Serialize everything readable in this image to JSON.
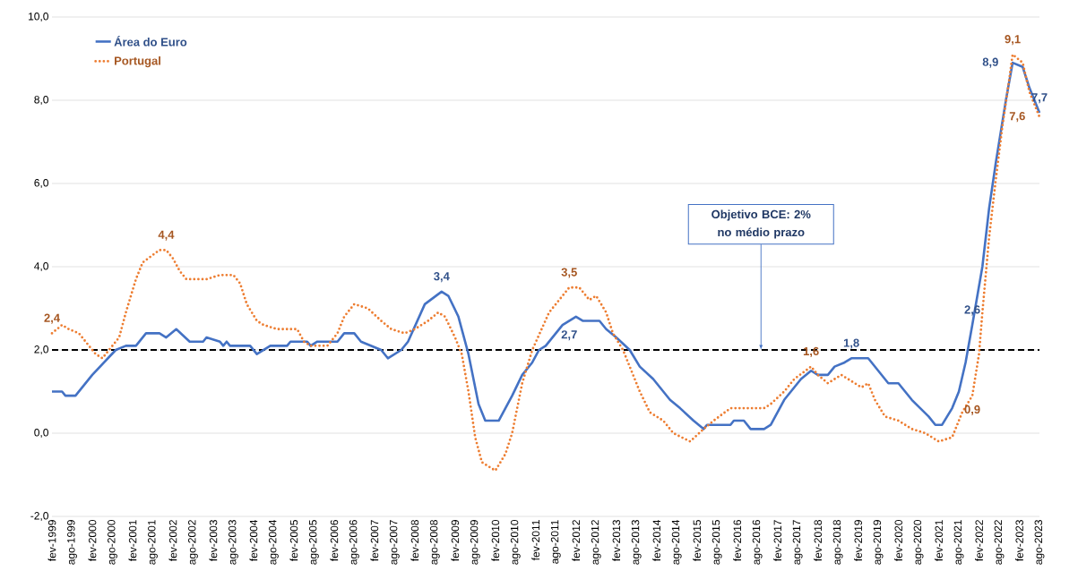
{
  "chart_data": {
    "type": "line",
    "grid": "y",
    "legend": "top left",
    "xlim": [
      "1999-02",
      "2023-08"
    ],
    "ylim": [
      -2,
      10
    ],
    "yticks": [
      {
        "value": -2,
        "label": "-2,0"
      },
      {
        "value": 0,
        "label": "0,0"
      },
      {
        "value": 2,
        "label": "2,0"
      },
      {
        "value": 4,
        "label": "4,0"
      },
      {
        "value": 6,
        "label": "6,0"
      },
      {
        "value": 8,
        "label": "8,0"
      },
      {
        "value": 10,
        "label": "10,0"
      }
    ],
    "xticks": [
      {
        "value": "1999-02",
        "label": "fev-1999"
      },
      {
        "value": "1999-08",
        "label": "ago-1999"
      },
      {
        "value": "2000-02",
        "label": "fev-2000"
      },
      {
        "value": "2000-08",
        "label": "ago-2000"
      },
      {
        "value": "2001-02",
        "label": "fev-2001"
      },
      {
        "value": "2001-08",
        "label": "ago-2001"
      },
      {
        "value": "2002-02",
        "label": "fev-2002"
      },
      {
        "value": "2002-08",
        "label": "ago-2002"
      },
      {
        "value": "2003-02",
        "label": "fev-2003"
      },
      {
        "value": "2003-08",
        "label": "ago-2003"
      },
      {
        "value": "2004-02",
        "label": "fev-2004"
      },
      {
        "value": "2004-08",
        "label": "ago-2004"
      },
      {
        "value": "2005-02",
        "label": "fev-2005"
      },
      {
        "value": "2005-08",
        "label": "ago-2005"
      },
      {
        "value": "2006-02",
        "label": "fev-2006"
      },
      {
        "value": "2006-08",
        "label": "ago-2006"
      },
      {
        "value": "2007-02",
        "label": "fev-2007"
      },
      {
        "value": "2007-08",
        "label": "ago-2007"
      },
      {
        "value": "2008-02",
        "label": "fev-2008"
      },
      {
        "value": "2008-08",
        "label": "ago-2008"
      },
      {
        "value": "2009-02",
        "label": "fev-2009"
      },
      {
        "value": "2009-08",
        "label": "ago-2009"
      },
      {
        "value": "2010-02",
        "label": "fev-2010"
      },
      {
        "value": "2010-08",
        "label": "ago-2010"
      },
      {
        "value": "2011-02",
        "label": "fev-2011"
      },
      {
        "value": "2011-08",
        "label": "ago-2011"
      },
      {
        "value": "2012-02",
        "label": "fev-2012"
      },
      {
        "value": "2012-08",
        "label": "ago-2012"
      },
      {
        "value": "2013-02",
        "label": "fev-2013"
      },
      {
        "value": "2013-08",
        "label": "ago-2013"
      },
      {
        "value": "2014-02",
        "label": "fev-2014"
      },
      {
        "value": "2014-08",
        "label": "ago-2014"
      },
      {
        "value": "2015-02",
        "label": "fev-2015"
      },
      {
        "value": "2015-08",
        "label": "ago-2015"
      },
      {
        "value": "2016-02",
        "label": "fev-2016"
      },
      {
        "value": "2016-08",
        "label": "ago-2016"
      },
      {
        "value": "2017-02",
        "label": "fev-2017"
      },
      {
        "value": "2017-08",
        "label": "ago-2017"
      },
      {
        "value": "2018-02",
        "label": "fev-2018"
      },
      {
        "value": "2018-08",
        "label": "ago-2018"
      },
      {
        "value": "2019-02",
        "label": "fev-2019"
      },
      {
        "value": "2019-08",
        "label": "ago-2019"
      },
      {
        "value": "2020-02",
        "label": "fev-2020"
      },
      {
        "value": "2020-08",
        "label": "ago-2020"
      },
      {
        "value": "2021-02",
        "label": "fev-2021"
      },
      {
        "value": "2021-08",
        "label": "ago-2021"
      },
      {
        "value": "2022-02",
        "label": "fev-2022"
      },
      {
        "value": "2022-08",
        "label": "ago-2022"
      },
      {
        "value": "2023-02",
        "label": "fev-2023"
      },
      {
        "value": "2023-08",
        "label": "ago-2023"
      }
    ],
    "series": [
      {
        "name": "Área do Euro",
        "color": "#4472c4",
        "line_style": "solid",
        "x": [
          "1999-02",
          "1999-05",
          "1999-06",
          "1999-09",
          "1999-10",
          "2000-02",
          "2000-09",
          "2000-12",
          "2001-03",
          "2001-06",
          "2001-10",
          "2001-12",
          "2002-03",
          "2002-07",
          "2002-11",
          "2002-12",
          "2003-04",
          "2003-05",
          "2003-06",
          "2003-07",
          "2004-01",
          "2004-03",
          "2004-07",
          "2004-12",
          "2005-01",
          "2005-06",
          "2005-07",
          "2005-09",
          "2006-03",
          "2006-05",
          "2006-08",
          "2006-10",
          "2007-01",
          "2007-04",
          "2007-06",
          "2007-10",
          "2007-12",
          "2008-05",
          "2008-10",
          "2008-12",
          "2009-03",
          "2009-06",
          "2009-09",
          "2009-11",
          "2010-03",
          "2010-05",
          "2010-07",
          "2010-10",
          "2011-01",
          "2011-03",
          "2011-05",
          "2011-10",
          "2011-12",
          "2012-02",
          "2012-04",
          "2012-09",
          "2012-11",
          "2013-02",
          "2013-06",
          "2013-09",
          "2014-01",
          "2014-06",
          "2014-09",
          "2015-01",
          "2015-04",
          "2015-05",
          "2015-12",
          "2016-01",
          "2016-04",
          "2016-06",
          "2016-10",
          "2016-12",
          "2017-04",
          "2017-09",
          "2017-12",
          "2018-02",
          "2018-05",
          "2018-07",
          "2018-10",
          "2018-12",
          "2019-05",
          "2019-11",
          "2020-02",
          "2020-06",
          "2020-11",
          "2021-01",
          "2021-03",
          "2021-06",
          "2021-08",
          "2021-10",
          "2021-12",
          "2022-03",
          "2022-05",
          "2022-07",
          "2022-10",
          "2022-12",
          "2023-03",
          "2023-05",
          "2023-08"
        ],
        "values": [
          1.0,
          1.0,
          0.9,
          0.9,
          1.0,
          1.4,
          2.0,
          2.1,
          2.1,
          2.4,
          2.4,
          2.3,
          2.5,
          2.2,
          2.2,
          2.3,
          2.2,
          2.1,
          2.2,
          2.1,
          2.1,
          1.9,
          2.1,
          2.1,
          2.2,
          2.2,
          2.1,
          2.2,
          2.2,
          2.4,
          2.4,
          2.2,
          2.1,
          2.0,
          1.8,
          2.0,
          2.2,
          3.1,
          3.4,
          3.3,
          2.8,
          1.9,
          0.7,
          0.3,
          0.3,
          0.6,
          0.9,
          1.4,
          1.7,
          2.0,
          2.1,
          2.6,
          2.7,
          2.8,
          2.7,
          2.7,
          2.5,
          2.3,
          2.0,
          1.6,
          1.3,
          0.8,
          0.6,
          0.3,
          0.1,
          0.2,
          0.2,
          0.3,
          0.3,
          0.1,
          0.1,
          0.2,
          0.8,
          1.3,
          1.5,
          1.4,
          1.4,
          1.6,
          1.7,
          1.8,
          1.8,
          1.2,
          1.2,
          0.8,
          0.4,
          0.2,
          0.2,
          0.6,
          1.0,
          1.7,
          2.6,
          4.0,
          5.4,
          6.5,
          8.0,
          8.9,
          8.8,
          8.3,
          7.7
        ]
      },
      {
        "name": "Portugal",
        "color": "#ed7d31",
        "line_style": "dotted",
        "x": [
          "1999-02",
          "1999-05",
          "1999-07",
          "1999-10",
          "1999-12",
          "2000-03",
          "2000-05",
          "2000-07",
          "2000-10",
          "2000-12",
          "2001-03",
          "2001-05",
          "2001-10",
          "2001-12",
          "2002-02",
          "2002-04",
          "2002-06",
          "2002-12",
          "2003-04",
          "2003-08",
          "2003-10",
          "2003-12",
          "2004-03",
          "2004-05",
          "2004-09",
          "2005-03",
          "2005-05",
          "2005-07",
          "2005-12",
          "2006-03",
          "2006-05",
          "2006-08",
          "2006-12",
          "2007-04",
          "2007-07",
          "2007-11",
          "2008-02",
          "2008-06",
          "2008-09",
          "2008-11",
          "2009-02",
          "2009-04",
          "2009-06",
          "2009-08",
          "2009-10",
          "2010-02",
          "2010-05",
          "2010-07",
          "2010-10",
          "2011-01",
          "2011-06",
          "2011-09",
          "2011-12",
          "2012-03",
          "2012-06",
          "2012-08",
          "2012-11",
          "2013-01",
          "2013-04",
          "2013-06",
          "2013-09",
          "2013-12",
          "2014-04",
          "2014-07",
          "2014-12",
          "2015-04",
          "2015-07",
          "2015-12",
          "2016-10",
          "2016-12",
          "2017-04",
          "2017-07",
          "2017-12",
          "2018-02",
          "2018-05",
          "2018-09",
          "2019-01",
          "2019-03",
          "2019-05",
          "2019-07",
          "2019-10",
          "2020-02",
          "2020-06",
          "2020-10",
          "2021-02",
          "2021-06",
          "2021-09",
          "2021-12",
          "2022-02",
          "2022-03",
          "2022-05",
          "2022-07",
          "2022-09",
          "2022-11",
          "2022-12",
          "2023-03",
          "2023-05",
          "2023-08"
        ],
        "values": [
          2.4,
          2.6,
          2.5,
          2.4,
          2.2,
          1.9,
          1.8,
          2.0,
          2.3,
          2.9,
          3.7,
          4.1,
          4.4,
          4.4,
          4.2,
          3.9,
          3.7,
          3.7,
          3.8,
          3.8,
          3.6,
          3.1,
          2.7,
          2.6,
          2.5,
          2.5,
          2.2,
          2.1,
          2.1,
          2.4,
          2.8,
          3.1,
          3.0,
          2.7,
          2.5,
          2.4,
          2.5,
          2.7,
          2.9,
          2.8,
          2.3,
          1.9,
          1.0,
          -0.1,
          -0.7,
          -0.9,
          -0.5,
          0.0,
          1.2,
          2.0,
          2.9,
          3.2,
          3.5,
          3.5,
          3.2,
          3.3,
          2.9,
          2.4,
          2.0,
          1.6,
          1.0,
          0.5,
          0.3,
          0.0,
          -0.2,
          0.1,
          0.3,
          0.6,
          0.6,
          0.7,
          1.0,
          1.3,
          1.6,
          1.4,
          1.2,
          1.4,
          1.2,
          1.1,
          1.2,
          0.8,
          0.4,
          0.3,
          0.1,
          0.0,
          -0.2,
          -0.1,
          0.5,
          0.9,
          1.9,
          2.9,
          4.7,
          6.1,
          7.4,
          8.5,
          9.1,
          8.9,
          8.2,
          7.6
        ]
      }
    ],
    "ref_lines": [
      {
        "axis": "y",
        "value": 2,
        "label": "Objetivo BCE: 2% no médio prazo",
        "color": "#000000",
        "line_style": "dashed"
      }
    ],
    "annotations": [
      {
        "text": "2,4",
        "x": "1999-02",
        "y": 2.4
      },
      {
        "text": "4,4",
        "x": "2001-12",
        "y": 4.4
      },
      {
        "text": "3,4",
        "x": "2008-10",
        "y": 3.4
      },
      {
        "text": "3,5",
        "x": "2011-12",
        "y": 3.5
      },
      {
        "text": "2,7",
        "x": "2011-12",
        "y": 2.7
      },
      {
        "text": "1,6",
        "x": "2017-12",
        "y": 1.6
      },
      {
        "text": "1,8",
        "x": "2018-12",
        "y": 1.8
      },
      {
        "text": "2,6",
        "x": "2021-12",
        "y": 2.6
      },
      {
        "text": "0,9",
        "x": "2021-12",
        "y": 0.9
      },
      {
        "text": "8,9",
        "x": "2022-12",
        "y": 8.9
      },
      {
        "text": "9,1",
        "x": "2022-12",
        "y": 9.1
      },
      {
        "text": "7,7",
        "x": "2023-08",
        "y": 7.7
      },
      {
        "text": "7,6",
        "x": "2023-08",
        "y": 7.6
      }
    ]
  }
}
